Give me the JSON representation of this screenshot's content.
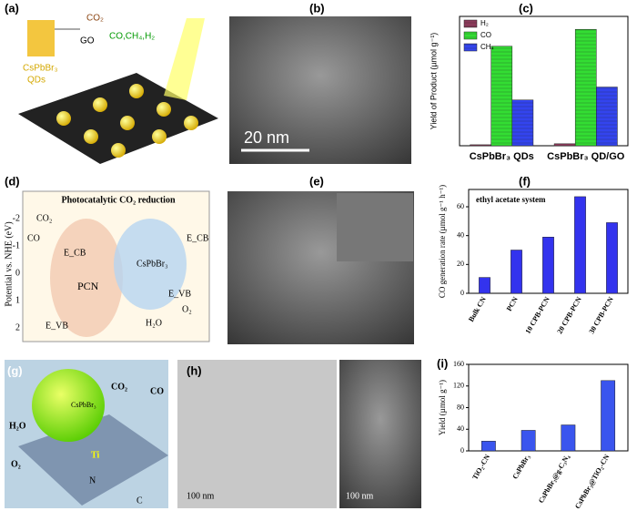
{
  "chart_data": [
    {
      "type": "bar",
      "categories": [
        "CsPbBr₃ QDs",
        "CsPbBr₃ QD/GO"
      ],
      "y_label": "Yield of Product (µmol g⁻¹)",
      "series": [
        {
          "name": "H₂",
          "color": "#8b3a5a",
          "values": [
            0.5,
            1
          ]
        },
        {
          "name": "CO",
          "color": "#33dd33",
          "values": [
            50,
            58.5
          ]
        },
        {
          "name": "CH₄",
          "color": "#3344ee",
          "values": [
            23,
            29.5
          ]
        }
      ],
      "ylim": [
        0,
        65
      ],
      "legend": "top-left"
    },
    {
      "type": "bar",
      "annotation": "ethyl acetate system",
      "y_label": "CO generation rate (µmol g⁻¹ h⁻¹)",
      "categories": [
        "Bulk CN",
        "PCN",
        "10 CPB-PCN",
        "20 CPB-PCN",
        "30 CPB-PCN"
      ],
      "values": [
        11,
        30,
        39,
        67,
        49
      ],
      "color": "#3333ee",
      "ylim": [
        0,
        72
      ],
      "yticks": [
        0,
        20,
        40,
        60
      ]
    },
    {
      "type": "bar",
      "y_label": "Yield (µmol g⁻¹)",
      "categories": [
        "TiO₂-CN",
        "CsPbBr₃",
        "CsPbBr₃@g-C₃N₄",
        "CsPbBr₃@TiO₂-CN"
      ],
      "values": [
        18,
        38,
        48,
        130
      ],
      "color": "#3a55ee",
      "ylim": [
        0,
        160
      ],
      "yticks": [
        0,
        40,
        80,
        120,
        160
      ]
    }
  ],
  "panels": {
    "a": {
      "label": "(a)",
      "texts": [
        "CO₂",
        "GO",
        "CO,CH₄,H₂",
        "CsPbBr₃",
        "QDs"
      ]
    },
    "b": {
      "label": "(b)",
      "scale": "20 nm"
    },
    "c": {
      "label": "(c)"
    },
    "d": {
      "label": "(d)",
      "title": "Photocatalytic CO₂ reduction",
      "axis": "Potential vs. NHE (eV)",
      "ticks": [
        "-2",
        "-1",
        "0",
        "1",
        "2"
      ],
      "texts": [
        "CO₂",
        "CO",
        "E_CB",
        "PCN",
        "E_VB",
        "CsPbBr₃",
        "E_CB",
        "E_VB",
        "H₂O",
        "O₂"
      ]
    },
    "e": {
      "label": "(e)"
    },
    "f": {
      "label": "(f)"
    },
    "g": {
      "label": "(g)",
      "texts": [
        "CsPbBr₃",
        "H₂O",
        "CO₂",
        "CO",
        "O₂",
        "Ti",
        "N",
        "C"
      ]
    },
    "h": {
      "label": "(h)",
      "scales": [
        "100 nm",
        "100 nm"
      ]
    },
    "i": {
      "label": "(i)"
    }
  }
}
